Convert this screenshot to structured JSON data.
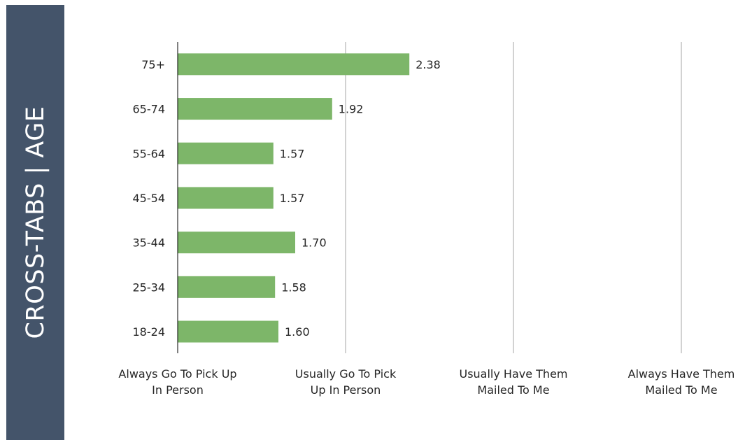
{
  "side_title": "CROSS-TABS | AGE",
  "colors": {
    "banner": "#44546a",
    "bar": "#7db669",
    "gridline": "#a6a6a6",
    "axis": "#000000"
  },
  "chart_data": {
    "type": "bar",
    "orientation": "horizontal",
    "categories": [
      "75+",
      "65-74",
      "55-64",
      "45-54",
      "35-44",
      "25-34",
      "18-24"
    ],
    "values": [
      2.38,
      1.92,
      1.57,
      1.57,
      1.7,
      1.58,
      1.6
    ],
    "value_labels": [
      "2.38",
      "1.92",
      "1.57",
      "1.57",
      "1.70",
      "1.58",
      "1.60"
    ],
    "xlim": [
      1,
      4
    ],
    "x_ticks": [
      {
        "value": 1,
        "label": [
          "Always Go To Pick Up",
          "In Person"
        ]
      },
      {
        "value": 2,
        "label": [
          "Usually Go To Pick",
          "Up In Person"
        ]
      },
      {
        "value": 3,
        "label": [
          "Usually Have Them",
          "Mailed To Me"
        ]
      },
      {
        "value": 4,
        "label": [
          "Always Have Them",
          "Mailed To Me"
        ]
      }
    ],
    "grid": true
  }
}
